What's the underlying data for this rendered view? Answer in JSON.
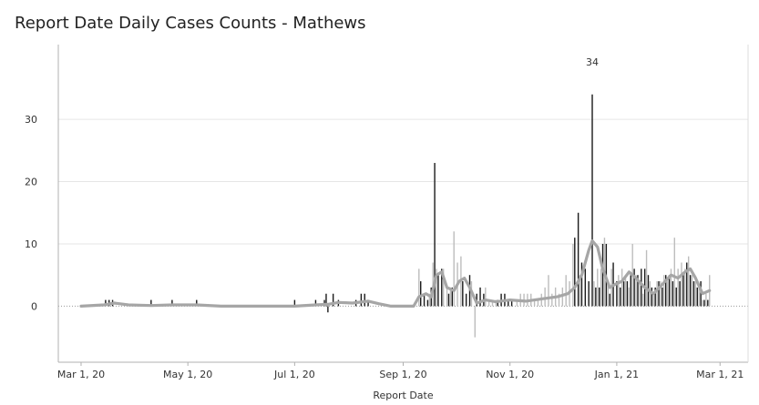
{
  "chart_data": {
    "type": "bar",
    "title": "Report Date Daily Cases Counts - Mathews",
    "xlabel": "Report Date",
    "ylabel": "",
    "ylim": [
      -9,
      42
    ],
    "y_ticks": [
      0,
      10,
      20,
      30
    ],
    "x_ticks": [
      "Mar 1, 20",
      "May 1, 20",
      "Jul 1, 20",
      "Sep 1, 20",
      "Nov 1, 20",
      "Jan 1, 21",
      "Mar 1, 21"
    ],
    "x_tick_dates": [
      "2020-03-01",
      "2020-05-01",
      "2020-07-01",
      "2020-09-01",
      "2020-11-01",
      "2021-01-01",
      "2021-03-01"
    ],
    "x_range": [
      "2020-02-17",
      "2021-03-17"
    ],
    "grid": "horizontal",
    "peak_label": {
      "date": "2020-12-18",
      "text": "34"
    },
    "colors": {
      "bars_dark": "#1a1a1a",
      "bars_light": "#bdbdbd",
      "average_line": "#a6a6a6",
      "grid": "#e6e6e6",
      "axis": "#b0b0b0"
    },
    "series": [
      {
        "name": "",
        "kind": "bars",
        "points": [
          [
            "2020-03-15",
            1
          ],
          [
            "2020-03-17",
            1
          ],
          [
            "2020-03-19",
            1
          ],
          [
            "2020-04-10",
            1
          ],
          [
            "2020-04-22",
            1
          ],
          [
            "2020-05-06",
            1
          ],
          [
            "2020-07-01",
            1
          ],
          [
            "2020-07-13",
            1
          ],
          [
            "2020-07-18",
            1
          ],
          [
            "2020-07-19",
            2
          ],
          [
            "2020-07-20",
            -1
          ],
          [
            "2020-07-23",
            2
          ],
          [
            "2020-07-26",
            1
          ],
          [
            "2020-08-05",
            1
          ],
          [
            "2020-08-08",
            2
          ],
          [
            "2020-08-10",
            2
          ],
          [
            "2020-08-12",
            1
          ],
          [
            "2020-09-10",
            6
          ],
          [
            "2020-09-11",
            4
          ],
          [
            "2020-09-13",
            2
          ],
          [
            "2020-09-15",
            1
          ],
          [
            "2020-09-16",
            2
          ],
          [
            "2020-09-17",
            3
          ],
          [
            "2020-09-18",
            7
          ],
          [
            "2020-09-19",
            23
          ],
          [
            "2020-09-20",
            6
          ],
          [
            "2020-09-21",
            5
          ],
          [
            "2020-09-23",
            6
          ],
          [
            "2020-09-24",
            6
          ],
          [
            "2020-09-26",
            3
          ],
          [
            "2020-09-27",
            2
          ],
          [
            "2020-09-28",
            3
          ],
          [
            "2020-09-29",
            3
          ],
          [
            "2020-09-30",
            12
          ],
          [
            "2020-10-02",
            7
          ],
          [
            "2020-10-04",
            8
          ],
          [
            "2020-10-05",
            4
          ],
          [
            "2020-10-07",
            2
          ],
          [
            "2020-10-09",
            5
          ],
          [
            "2020-10-10",
            4
          ],
          [
            "2020-10-12",
            -5
          ],
          [
            "2020-10-13",
            2
          ],
          [
            "2020-10-15",
            3
          ],
          [
            "2020-10-17",
            2
          ],
          [
            "2020-10-18",
            3
          ],
          [
            "2020-10-20",
            1
          ],
          [
            "2020-10-22",
            1
          ],
          [
            "2020-10-24",
            1
          ],
          [
            "2020-10-25",
            1
          ],
          [
            "2020-10-27",
            2
          ],
          [
            "2020-10-29",
            2
          ],
          [
            "2020-10-31",
            1
          ],
          [
            "2020-11-02",
            1
          ],
          [
            "2020-11-05",
            1
          ],
          [
            "2020-11-07",
            2
          ],
          [
            "2020-11-09",
            2
          ],
          [
            "2020-11-11",
            2
          ],
          [
            "2020-11-13",
            2
          ],
          [
            "2020-11-15",
            1
          ],
          [
            "2020-11-17",
            1
          ],
          [
            "2020-11-19",
            2
          ],
          [
            "2020-11-21",
            3
          ],
          [
            "2020-11-23",
            5
          ],
          [
            "2020-11-25",
            2
          ],
          [
            "2020-11-27",
            3
          ],
          [
            "2020-11-29",
            2
          ],
          [
            "2020-12-01",
            3
          ],
          [
            "2020-12-03",
            5
          ],
          [
            "2020-12-05",
            4
          ],
          [
            "2020-12-07",
            10
          ],
          [
            "2020-12-08",
            11
          ],
          [
            "2020-12-10",
            15
          ],
          [
            "2020-12-11",
            5
          ],
          [
            "2020-12-12",
            7
          ],
          [
            "2020-12-14",
            6
          ],
          [
            "2020-12-16",
            4
          ],
          [
            "2020-12-18",
            34
          ],
          [
            "2020-12-19",
            4
          ],
          [
            "2020-12-20",
            3
          ],
          [
            "2020-12-21",
            6
          ],
          [
            "2020-12-22",
            3
          ],
          [
            "2020-12-23",
            6
          ],
          [
            "2020-12-24",
            10
          ],
          [
            "2020-12-25",
            11
          ],
          [
            "2020-12-26",
            10
          ],
          [
            "2020-12-27",
            4
          ],
          [
            "2020-12-28",
            2
          ],
          [
            "2020-12-29",
            6
          ],
          [
            "2020-12-30",
            7
          ],
          [
            "2021-01-01",
            4
          ],
          [
            "2021-01-02",
            5
          ],
          [
            "2021-01-03",
            3
          ],
          [
            "2021-01-04",
            6
          ],
          [
            "2021-01-05",
            4
          ],
          [
            "2021-01-06",
            5
          ],
          [
            "2021-01-07",
            4
          ],
          [
            "2021-01-08",
            3
          ],
          [
            "2021-01-09",
            5
          ],
          [
            "2021-01-10",
            10
          ],
          [
            "2021-01-11",
            6
          ],
          [
            "2021-01-12",
            5
          ],
          [
            "2021-01-13",
            5
          ],
          [
            "2021-01-14",
            4
          ],
          [
            "2021-01-15",
            6
          ],
          [
            "2021-01-16",
            2
          ],
          [
            "2021-01-17",
            6
          ],
          [
            "2021-01-18",
            9
          ],
          [
            "2021-01-19",
            5
          ],
          [
            "2021-01-20",
            4
          ],
          [
            "2021-01-21",
            3
          ],
          [
            "2021-01-22",
            2
          ],
          [
            "2021-01-23",
            3
          ],
          [
            "2021-01-24",
            4
          ],
          [
            "2021-01-25",
            4
          ],
          [
            "2021-01-26",
            4
          ],
          [
            "2021-01-27",
            3
          ],
          [
            "2021-01-28",
            5
          ],
          [
            "2021-01-29",
            5
          ],
          [
            "2021-01-30",
            4
          ],
          [
            "2021-01-31",
            5
          ],
          [
            "2021-02-01",
            6
          ],
          [
            "2021-02-02",
            4
          ],
          [
            "2021-02-03",
            11
          ],
          [
            "2021-02-04",
            3
          ],
          [
            "2021-02-05",
            6
          ],
          [
            "2021-02-06",
            4
          ],
          [
            "2021-02-07",
            7
          ],
          [
            "2021-02-08",
            5
          ],
          [
            "2021-02-09",
            6
          ],
          [
            "2021-02-10",
            7
          ],
          [
            "2021-02-11",
            8
          ],
          [
            "2021-02-12",
            5
          ],
          [
            "2021-02-13",
            5
          ],
          [
            "2021-02-14",
            4
          ],
          [
            "2021-02-15",
            4
          ],
          [
            "2021-02-16",
            3
          ],
          [
            "2021-02-17",
            3
          ],
          [
            "2021-02-18",
            4
          ],
          [
            "2021-02-19",
            1
          ],
          [
            "2021-02-20",
            1
          ],
          [
            "2021-02-21",
            2
          ],
          [
            "2021-02-22",
            1
          ],
          [
            "2021-02-23",
            5
          ]
        ]
      },
      {
        "name": "",
        "kind": "line",
        "points": [
          [
            "2020-03-01",
            0
          ],
          [
            "2020-03-14",
            0.2
          ],
          [
            "2020-03-20",
            0.5
          ],
          [
            "2020-03-28",
            0.2
          ],
          [
            "2020-04-10",
            0.1
          ],
          [
            "2020-04-22",
            0.2
          ],
          [
            "2020-05-06",
            0.2
          ],
          [
            "2020-05-20",
            0
          ],
          [
            "2020-07-01",
            0
          ],
          [
            "2020-07-13",
            0.2
          ],
          [
            "2020-07-20",
            0.3
          ],
          [
            "2020-07-26",
            0.6
          ],
          [
            "2020-08-03",
            0.5
          ],
          [
            "2020-08-12",
            0.8
          ],
          [
            "2020-08-18",
            0.4
          ],
          [
            "2020-08-25",
            0
          ],
          [
            "2020-09-07",
            0
          ],
          [
            "2020-09-10",
            1.5
          ],
          [
            "2020-09-14",
            2
          ],
          [
            "2020-09-17",
            1.5
          ],
          [
            "2020-09-20",
            5
          ],
          [
            "2020-09-23",
            5.5
          ],
          [
            "2020-09-26",
            3
          ],
          [
            "2020-09-30",
            2.5
          ],
          [
            "2020-10-03",
            4
          ],
          [
            "2020-10-06",
            4.5
          ],
          [
            "2020-10-09",
            3
          ],
          [
            "2020-10-13",
            0.5
          ],
          [
            "2020-10-18",
            1
          ],
          [
            "2020-10-24",
            0.7
          ],
          [
            "2020-11-01",
            1
          ],
          [
            "2020-11-10",
            0.8
          ],
          [
            "2020-11-20",
            1.2
          ],
          [
            "2020-11-28",
            1.5
          ],
          [
            "2020-12-04",
            2
          ],
          [
            "2020-12-08",
            3
          ],
          [
            "2020-12-12",
            5
          ],
          [
            "2020-12-16",
            9
          ],
          [
            "2020-12-18",
            10.5
          ],
          [
            "2020-12-21",
            9.5
          ],
          [
            "2020-12-24",
            6
          ],
          [
            "2020-12-28",
            3
          ],
          [
            "2020-12-31",
            3.5
          ],
          [
            "2021-01-04",
            4
          ],
          [
            "2021-01-08",
            5.5
          ],
          [
            "2021-01-12",
            4.5
          ],
          [
            "2021-01-17",
            3
          ],
          [
            "2021-01-22",
            2
          ],
          [
            "2021-01-27",
            3.5
          ],
          [
            "2021-02-01",
            5
          ],
          [
            "2021-02-05",
            4.5
          ],
          [
            "2021-02-09",
            5.5
          ],
          [
            "2021-02-12",
            6
          ],
          [
            "2021-02-15",
            4.5
          ],
          [
            "2021-02-19",
            2
          ],
          [
            "2021-02-23",
            2.5
          ]
        ]
      }
    ]
  }
}
